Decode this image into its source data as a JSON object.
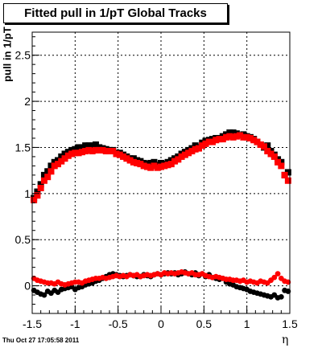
{
  "title": "Fitted pull in 1/pT  Global Tracks",
  "footer": "Thu Oct 27 17:05:58 2011",
  "chart_data": {
    "type": "scatter",
    "xlabel": "η",
    "ylabel": "pull in 1/pT",
    "xlim": [
      -1.5,
      1.5
    ],
    "ylim": [
      -0.3,
      2.75
    ],
    "x_ticks": [
      "-1.5",
      "-1",
      "-0.5",
      "0",
      "0.5",
      "1",
      "1.5"
    ],
    "y_ticks": [
      "0",
      "0.5",
      "1",
      "1.5",
      "2",
      "2.5"
    ],
    "grid": true,
    "series": [
      {
        "color": "#000000",
        "marker": "square",
        "x": [
          -1.48,
          -1.44,
          -1.4,
          -1.36,
          -1.32,
          -1.28,
          -1.24,
          -1.2,
          -1.16,
          -1.12,
          -1.08,
          -1.04,
          -1.0,
          -0.96,
          -0.92,
          -0.88,
          -0.84,
          -0.8,
          -0.76,
          -0.72,
          -0.68,
          -0.64,
          -0.6,
          -0.56,
          -0.52,
          -0.48,
          -0.44,
          -0.4,
          -0.36,
          -0.32,
          -0.28,
          -0.24,
          -0.2,
          -0.16,
          -0.12,
          -0.08,
          -0.04,
          0.0,
          0.04,
          0.08,
          0.12,
          0.16,
          0.2,
          0.24,
          0.28,
          0.32,
          0.36,
          0.4,
          0.44,
          0.48,
          0.52,
          0.56,
          0.6,
          0.64,
          0.68,
          0.72,
          0.76,
          0.8,
          0.84,
          0.88,
          0.92,
          0.96,
          1.0,
          1.04,
          1.08,
          1.12,
          1.16,
          1.2,
          1.24,
          1.28,
          1.32,
          1.36,
          1.4,
          1.44,
          1.48
        ],
        "y": [
          0.95,
          1.02,
          1.1,
          1.2,
          1.24,
          1.3,
          1.34,
          1.36,
          1.4,
          1.43,
          1.45,
          1.47,
          1.48,
          1.5,
          1.5,
          1.52,
          1.52,
          1.52,
          1.53,
          1.5,
          1.49,
          1.48,
          1.47,
          1.47,
          1.44,
          1.44,
          1.42,
          1.4,
          1.38,
          1.38,
          1.36,
          1.35,
          1.33,
          1.32,
          1.33,
          1.34,
          1.31,
          1.33,
          1.32,
          1.34,
          1.36,
          1.38,
          1.4,
          1.43,
          1.45,
          1.47,
          1.49,
          1.52,
          1.5,
          1.55,
          1.57,
          1.58,
          1.59,
          1.6,
          1.6,
          1.62,
          1.64,
          1.66,
          1.66,
          1.65,
          1.63,
          1.64,
          1.62,
          1.61,
          1.59,
          1.56,
          1.53,
          1.5,
          1.52,
          1.46,
          1.42,
          1.37,
          1.34,
          1.2,
          1.23
        ]
      },
      {
        "color": "#ff0000",
        "marker": "square",
        "x": [
          -1.48,
          -1.44,
          -1.4,
          -1.36,
          -1.32,
          -1.28,
          -1.24,
          -1.2,
          -1.16,
          -1.12,
          -1.08,
          -1.04,
          -1.0,
          -0.96,
          -0.92,
          -0.88,
          -0.84,
          -0.8,
          -0.76,
          -0.72,
          -0.68,
          -0.64,
          -0.6,
          -0.56,
          -0.52,
          -0.48,
          -0.44,
          -0.4,
          -0.36,
          -0.32,
          -0.28,
          -0.24,
          -0.2,
          -0.16,
          -0.12,
          -0.08,
          -0.04,
          0.0,
          0.04,
          0.08,
          0.12,
          0.16,
          0.2,
          0.24,
          0.28,
          0.32,
          0.36,
          0.4,
          0.44,
          0.48,
          0.52,
          0.56,
          0.6,
          0.64,
          0.68,
          0.72,
          0.76,
          0.8,
          0.84,
          0.88,
          0.92,
          0.96,
          1.0,
          1.04,
          1.08,
          1.12,
          1.16,
          1.2,
          1.24,
          1.28,
          1.32,
          1.36,
          1.4,
          1.44,
          1.48
        ],
        "y": [
          0.93,
          0.98,
          1.06,
          1.14,
          1.18,
          1.24,
          1.3,
          1.32,
          1.35,
          1.38,
          1.41,
          1.43,
          1.44,
          1.44,
          1.45,
          1.46,
          1.47,
          1.46,
          1.47,
          1.47,
          1.47,
          1.46,
          1.46,
          1.46,
          1.43,
          1.42,
          1.4,
          1.38,
          1.36,
          1.34,
          1.33,
          1.32,
          1.3,
          1.29,
          1.28,
          1.3,
          1.28,
          1.29,
          1.3,
          1.31,
          1.32,
          1.35,
          1.37,
          1.4,
          1.42,
          1.44,
          1.46,
          1.48,
          1.49,
          1.52,
          1.54,
          1.56,
          1.56,
          1.58,
          1.59,
          1.59,
          1.61,
          1.62,
          1.61,
          1.62,
          1.63,
          1.61,
          1.61,
          1.6,
          1.58,
          1.56,
          1.53,
          1.51,
          1.46,
          1.43,
          1.4,
          1.34,
          1.3,
          1.2,
          1.14
        ]
      },
      {
        "color": "#000000",
        "marker": "circle",
        "x": [
          -1.48,
          -1.44,
          -1.4,
          -1.36,
          -1.32,
          -1.28,
          -1.24,
          -1.2,
          -1.16,
          -1.12,
          -1.08,
          -1.04,
          -1.0,
          -0.96,
          -0.92,
          -0.88,
          -0.84,
          -0.8,
          -0.76,
          -0.72,
          -0.68,
          -0.64,
          -0.6,
          -0.56,
          -0.52,
          -0.48,
          -0.44,
          -0.4,
          -0.36,
          -0.32,
          -0.28,
          -0.24,
          -0.2,
          -0.16,
          -0.12,
          -0.08,
          -0.04,
          0.0,
          0.04,
          0.08,
          0.12,
          0.16,
          0.2,
          0.24,
          0.28,
          0.32,
          0.36,
          0.4,
          0.44,
          0.48,
          0.52,
          0.56,
          0.6,
          0.64,
          0.68,
          0.72,
          0.76,
          0.8,
          0.84,
          0.88,
          0.92,
          0.96,
          1.0,
          1.04,
          1.08,
          1.12,
          1.16,
          1.2,
          1.24,
          1.28,
          1.32,
          1.36,
          1.4,
          1.44,
          1.48
        ],
        "y": [
          -0.05,
          -0.07,
          -0.09,
          -0.1,
          -0.06,
          -0.08,
          -0.05,
          -0.07,
          -0.04,
          -0.03,
          -0.02,
          -0.01,
          -0.04,
          -0.02,
          -0.01,
          0.01,
          0.02,
          0.03,
          0.05,
          0.06,
          0.08,
          0.1,
          0.12,
          0.13,
          0.12,
          0.11,
          0.1,
          0.11,
          0.12,
          0.11,
          0.1,
          0.1,
          0.12,
          0.11,
          0.1,
          0.12,
          0.13,
          0.12,
          0.13,
          0.14,
          0.13,
          0.14,
          0.12,
          0.13,
          0.15,
          0.13,
          0.12,
          0.14,
          0.11,
          0.13,
          0.1,
          0.12,
          0.09,
          0.08,
          0.07,
          0.08,
          0.04,
          0.02,
          0.01,
          -0.01,
          -0.02,
          -0.03,
          -0.04,
          -0.06,
          -0.07,
          -0.08,
          -0.09,
          -0.1,
          -0.11,
          -0.12,
          -0.1,
          -0.13,
          -0.12,
          -0.05,
          -0.06
        ]
      },
      {
        "color": "#ff0000",
        "marker": "circle",
        "x": [
          -1.48,
          -1.44,
          -1.4,
          -1.36,
          -1.32,
          -1.28,
          -1.24,
          -1.2,
          -1.16,
          -1.12,
          -1.08,
          -1.04,
          -1.0,
          -0.96,
          -0.92,
          -0.88,
          -0.84,
          -0.8,
          -0.76,
          -0.72,
          -0.68,
          -0.64,
          -0.6,
          -0.56,
          -0.52,
          -0.48,
          -0.44,
          -0.4,
          -0.36,
          -0.32,
          -0.28,
          -0.24,
          -0.2,
          -0.16,
          -0.12,
          -0.08,
          -0.04,
          0.0,
          0.04,
          0.08,
          0.12,
          0.16,
          0.2,
          0.24,
          0.28,
          0.32,
          0.36,
          0.4,
          0.44,
          0.48,
          0.52,
          0.56,
          0.6,
          0.64,
          0.68,
          0.72,
          0.76,
          0.8,
          0.84,
          0.88,
          0.92,
          0.96,
          1.0,
          1.04,
          1.08,
          1.12,
          1.16,
          1.2,
          1.24,
          1.28,
          1.32,
          1.36,
          1.4,
          1.44,
          1.48
        ],
        "y": [
          0.08,
          0.06,
          0.05,
          0.04,
          0.03,
          0.03,
          0.02,
          0.04,
          0.02,
          0.01,
          0.02,
          0.03,
          0.04,
          0.04,
          0.03,
          0.05,
          0.06,
          0.07,
          0.08,
          0.08,
          0.09,
          0.08,
          0.09,
          0.1,
          0.11,
          0.1,
          0.11,
          0.1,
          0.12,
          0.11,
          0.12,
          0.1,
          0.11,
          0.12,
          0.11,
          0.12,
          0.13,
          0.12,
          0.14,
          0.13,
          0.14,
          0.13,
          0.14,
          0.15,
          0.14,
          0.13,
          0.14,
          0.12,
          0.12,
          0.13,
          0.11,
          0.1,
          0.09,
          0.1,
          0.09,
          0.08,
          0.07,
          0.07,
          0.06,
          0.06,
          0.05,
          0.06,
          0.04,
          0.05,
          0.04,
          0.03,
          0.05,
          0.04,
          0.03,
          0.06,
          0.09,
          0.13,
          0.08,
          0.05,
          0.04
        ]
      }
    ]
  }
}
